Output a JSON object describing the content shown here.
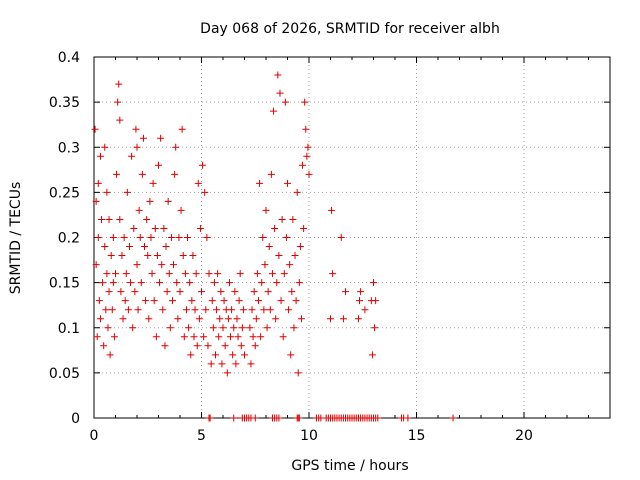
{
  "chart_data": {
    "type": "scatter",
    "title": "Day 068 of 2026, SRMTID for receiver albh",
    "xlabel": "GPS time / hours",
    "ylabel": "SRMTID / TECUs",
    "xlim": [
      0,
      24
    ],
    "ylim": [
      0,
      0.4
    ],
    "x_ticks": [
      0,
      5,
      10,
      15,
      20
    ],
    "x_tick_labels": [
      "0",
      "5",
      "10",
      "15",
      "20"
    ],
    "y_ticks": [
      0,
      0.05,
      0.1,
      0.15,
      0.2,
      0.25,
      0.3,
      0.35,
      0.4
    ],
    "y_tick_labels": [
      "0",
      "0.05",
      "0.1",
      "0.15",
      "0.2",
      "0.25",
      "0.3",
      "0.35",
      "0.4"
    ],
    "grid": true,
    "marker": "plus",
    "color": "#e00000",
    "series": [
      {
        "name": "SRMTID",
        "points": [
          [
            0.05,
            0.32
          ],
          [
            0.1,
            0.24
          ],
          [
            0.1,
            0.17
          ],
          [
            0.15,
            0.09
          ],
          [
            0.2,
            0.26
          ],
          [
            0.2,
            0.2
          ],
          [
            0.25,
            0.13
          ],
          [
            0.3,
            0.29
          ],
          [
            0.3,
            0.11
          ],
          [
            0.35,
            0.22
          ],
          [
            0.4,
            0.15
          ],
          [
            0.45,
            0.08
          ],
          [
            0.5,
            0.3
          ],
          [
            0.5,
            0.19
          ],
          [
            0.55,
            0.12
          ],
          [
            0.6,
            0.25
          ],
          [
            0.6,
            0.16
          ],
          [
            0.65,
            0.1
          ],
          [
            0.7,
            0.22
          ],
          [
            0.7,
            0.14
          ],
          [
            0.75,
            0.07
          ],
          [
            0.8,
            0.18
          ],
          [
            0.85,
            0.12
          ],
          [
            0.9,
            0.2
          ],
          [
            0.9,
            0.15
          ],
          [
            0.95,
            0.09
          ],
          [
            1.0,
            0.16
          ],
          [
            1.05,
            0.27
          ],
          [
            1.1,
            0.35
          ],
          [
            1.15,
            0.37
          ],
          [
            1.2,
            0.33
          ],
          [
            1.2,
            0.22
          ],
          [
            1.25,
            0.14
          ],
          [
            1.3,
            0.18
          ],
          [
            1.35,
            0.11
          ],
          [
            1.4,
            0.2
          ],
          [
            1.45,
            0.13
          ],
          [
            1.5,
            0.16
          ],
          [
            1.55,
            0.25
          ],
          [
            1.6,
            0.12
          ],
          [
            1.65,
            0.19
          ],
          [
            1.7,
            0.15
          ],
          [
            1.75,
            0.29
          ],
          [
            1.8,
            0.1
          ],
          [
            1.85,
            0.21
          ],
          [
            1.9,
            0.14
          ],
          [
            1.95,
            0.32
          ],
          [
            2.0,
            0.3
          ],
          [
            2.0,
            0.17
          ],
          [
            2.05,
            0.12
          ],
          [
            2.1,
            0.23
          ],
          [
            2.15,
            0.2
          ],
          [
            2.2,
            0.15
          ],
          [
            2.25,
            0.27
          ],
          [
            2.3,
            0.31
          ],
          [
            2.35,
            0.19
          ],
          [
            2.4,
            0.13
          ],
          [
            2.45,
            0.22
          ],
          [
            2.5,
            0.18
          ],
          [
            2.55,
            0.11
          ],
          [
            2.6,
            0.24
          ],
          [
            2.65,
            0.2
          ],
          [
            2.7,
            0.16
          ],
          [
            2.75,
            0.26
          ],
          [
            2.8,
            0.13
          ],
          [
            2.85,
            0.21
          ],
          [
            2.9,
            0.09
          ],
          [
            2.95,
            0.18
          ],
          [
            3.0,
            0.28
          ],
          [
            3.05,
            0.15
          ],
          [
            3.1,
            0.31
          ],
          [
            3.15,
            0.17
          ],
          [
            3.2,
            0.12
          ],
          [
            3.25,
            0.21
          ],
          [
            3.3,
            0.08
          ],
          [
            3.35,
            0.19
          ],
          [
            3.4,
            0.14
          ],
          [
            3.45,
            0.24
          ],
          [
            3.5,
            0.16
          ],
          [
            3.55,
            0.1
          ],
          [
            3.6,
            0.2
          ],
          [
            3.65,
            0.13
          ],
          [
            3.7,
            0.17
          ],
          [
            3.75,
            0.27
          ],
          [
            3.8,
            0.3
          ],
          [
            3.85,
            0.15
          ],
          [
            3.9,
            0.11
          ],
          [
            3.95,
            0.2
          ],
          [
            4.0,
            0.14
          ],
          [
            4.05,
            0.23
          ],
          [
            4.1,
            0.32
          ],
          [
            4.15,
            0.18
          ],
          [
            4.2,
            0.09
          ],
          [
            4.25,
            0.16
          ],
          [
            4.3,
            0.12
          ],
          [
            4.35,
            0.2
          ],
          [
            4.4,
            0.1
          ],
          [
            4.45,
            0.15
          ],
          [
            4.5,
            0.07
          ],
          [
            4.55,
            0.13
          ],
          [
            4.6,
            0.18
          ],
          [
            4.65,
            0.09
          ],
          [
            4.7,
            0.12
          ],
          [
            4.75,
            0.16
          ],
          [
            4.8,
            0.08
          ],
          [
            4.85,
            0.26
          ],
          [
            4.9,
            0.11
          ],
          [
            4.95,
            0.21
          ],
          [
            5.0,
            0.14
          ],
          [
            5.05,
            0.28
          ],
          [
            5.1,
            0.09
          ],
          [
            5.15,
            0.25
          ],
          [
            5.2,
            0.12
          ],
          [
            5.25,
            0.2
          ],
          [
            5.3,
            0.08
          ],
          [
            5.35,
            0.16
          ],
          [
            5.45,
            0.06
          ],
          [
            5.5,
            0.13
          ],
          [
            5.55,
            0.1
          ],
          [
            5.6,
            0.15
          ],
          [
            5.65,
            0.07
          ],
          [
            5.7,
            0.12
          ],
          [
            5.75,
            0.16
          ],
          [
            5.8,
            0.09
          ],
          [
            5.85,
            0.11
          ],
          [
            5.9,
            0.14
          ],
          [
            5.95,
            0.06
          ],
          [
            6.0,
            0.1
          ],
          [
            6.05,
            0.13
          ],
          [
            6.1,
            0.08
          ],
          [
            6.15,
            0.12
          ],
          [
            6.2,
            0.05
          ],
          [
            6.25,
            0.11
          ],
          [
            6.3,
            0.15
          ],
          [
            6.35,
            0.09
          ],
          [
            6.4,
            0.12
          ],
          [
            6.45,
            0.07
          ],
          [
            6.5,
            0.1
          ],
          [
            6.55,
            0.14
          ],
          [
            6.6,
            0.06
          ],
          [
            6.65,
            0.11
          ],
          [
            6.7,
            0.09
          ],
          [
            6.75,
            0.13
          ],
          [
            6.8,
            0.16
          ],
          [
            6.85,
            0.08
          ],
          [
            6.9,
            0.1
          ],
          [
            6.95,
            0.12
          ],
          [
            7.0,
            0.07
          ],
          [
            7.25,
            0.1
          ],
          [
            7.3,
            0.06
          ],
          [
            7.35,
            0.12
          ],
          [
            7.4,
            0.09
          ],
          [
            7.45,
            0.14
          ],
          [
            7.5,
            0.08
          ],
          [
            7.55,
            0.11
          ],
          [
            7.6,
            0.16
          ],
          [
            7.65,
            0.13
          ],
          [
            7.7,
            0.26
          ],
          [
            7.75,
            0.09
          ],
          [
            7.8,
            0.15
          ],
          [
            7.85,
            0.2
          ],
          [
            7.9,
            0.12
          ],
          [
            7.95,
            0.17
          ],
          [
            8.0,
            0.23
          ],
          [
            8.05,
            0.1
          ],
          [
            8.1,
            0.14
          ],
          [
            8.15,
            0.19
          ],
          [
            8.2,
            0.12
          ],
          [
            8.25,
            0.27
          ],
          [
            8.3,
            0.16
          ],
          [
            8.35,
            0.34
          ],
          [
            8.4,
            0.21
          ],
          [
            8.45,
            0.11
          ],
          [
            8.5,
            0.15
          ],
          [
            8.55,
            0.38
          ],
          [
            8.6,
            0.18
          ],
          [
            8.65,
            0.36
          ],
          [
            8.7,
            0.13
          ],
          [
            8.75,
            0.22
          ],
          [
            8.8,
            0.09
          ],
          [
            8.85,
            0.16
          ],
          [
            8.9,
            0.35
          ],
          [
            8.95,
            0.2
          ],
          [
            9.0,
            0.26
          ],
          [
            9.05,
            0.12
          ],
          [
            9.1,
            0.17
          ],
          [
            9.15,
            0.07
          ],
          [
            9.2,
            0.14
          ],
          [
            9.25,
            0.22
          ],
          [
            9.3,
            0.1
          ],
          [
            9.35,
            0.18
          ],
          [
            9.4,
            0.13
          ],
          [
            9.45,
            0.25
          ],
          [
            9.5,
            0.05
          ],
          [
            9.55,
            0.15
          ],
          [
            9.6,
            0.19
          ],
          [
            9.65,
            0.11
          ],
          [
            9.7,
            0.28
          ],
          [
            9.75,
            0.21
          ],
          [
            9.8,
            0.35
          ],
          [
            9.85,
            0.32
          ],
          [
            9.9,
            0.29
          ],
          [
            9.95,
            0.3
          ],
          [
            10.0,
            0.27
          ],
          [
            11.0,
            0.11
          ],
          [
            11.05,
            0.23
          ],
          [
            11.1,
            0.16
          ],
          [
            11.5,
            0.2
          ],
          [
            11.6,
            0.11
          ],
          [
            11.7,
            0.14
          ],
          [
            12.3,
            0.11
          ],
          [
            12.35,
            0.13
          ],
          [
            12.4,
            0.14
          ],
          [
            12.6,
            0.12
          ],
          [
            12.9,
            0.13
          ],
          [
            12.95,
            0.07
          ],
          [
            13.0,
            0.15
          ],
          [
            13.05,
            0.1
          ],
          [
            13.1,
            0.13
          ],
          [
            5.35,
            0.0
          ],
          [
            5.4,
            0.0
          ],
          [
            6.5,
            0.0
          ],
          [
            6.9,
            0.0
          ],
          [
            7.0,
            0.0
          ],
          [
            7.1,
            0.0
          ],
          [
            7.2,
            0.0
          ],
          [
            7.3,
            0.0
          ],
          [
            7.5,
            0.0
          ],
          [
            8.3,
            0.0
          ],
          [
            8.4,
            0.0
          ],
          [
            8.5,
            0.0
          ],
          [
            8.6,
            0.0
          ],
          [
            9.45,
            0.0
          ],
          [
            9.5,
            0.0
          ],
          [
            9.55,
            0.0
          ],
          [
            10.35,
            0.0
          ],
          [
            10.45,
            0.0
          ],
          [
            10.55,
            0.0
          ],
          [
            10.8,
            0.0
          ],
          [
            10.9,
            0.0
          ],
          [
            11.0,
            0.0
          ],
          [
            11.1,
            0.0
          ],
          [
            11.2,
            0.0
          ],
          [
            11.3,
            0.0
          ],
          [
            11.4,
            0.0
          ],
          [
            11.5,
            0.0
          ],
          [
            11.6,
            0.0
          ],
          [
            11.7,
            0.0
          ],
          [
            11.8,
            0.0
          ],
          [
            11.9,
            0.0
          ],
          [
            12.0,
            0.0
          ],
          [
            12.1,
            0.0
          ],
          [
            12.2,
            0.0
          ],
          [
            12.3,
            0.0
          ],
          [
            12.4,
            0.0
          ],
          [
            12.5,
            0.0
          ],
          [
            12.6,
            0.0
          ],
          [
            12.7,
            0.0
          ],
          [
            12.8,
            0.0
          ],
          [
            12.9,
            0.0
          ],
          [
            13.0,
            0.0
          ],
          [
            13.1,
            0.0
          ],
          [
            13.2,
            0.0
          ],
          [
            14.3,
            0.0
          ],
          [
            14.4,
            0.0
          ],
          [
            14.6,
            0.0
          ],
          [
            16.7,
            0.0
          ]
        ]
      }
    ]
  }
}
